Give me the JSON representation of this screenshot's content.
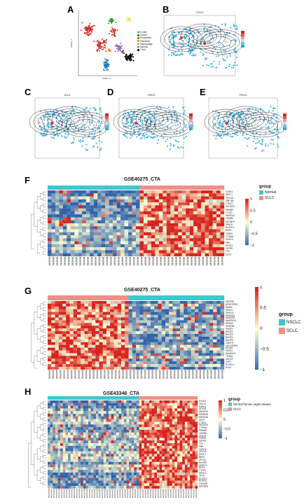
{
  "panel_labels": [
    "A",
    "B",
    "C",
    "D",
    "E",
    "F",
    "G",
    "H"
  ],
  "umap": {
    "xlabel": "UMAP_1",
    "ylabel": "UMAP_2",
    "legend": [
      {
        "name": "B cells",
        "color": "#1f77b4"
      },
      {
        "name": "Cancer",
        "color": "#d62728"
      },
      {
        "name": "Endothelial",
        "color": "#2ca02c"
      },
      {
        "name": "Fibroblast",
        "color": "#ff7f0e"
      },
      {
        "name": "Macrophage",
        "color": "#9467bd"
      },
      {
        "name": "Myeloid",
        "color": "#8c564b"
      },
      {
        "name": "T cell",
        "color": "#000000"
      }
    ]
  },
  "density_titles": {
    "B": "CTAG2",
    "C": "NOL4",
    "D": "SPAG1",
    "E": "SPAG4"
  },
  "heatmaps": {
    "F": {
      "title": "GSE40275_CTA",
      "legend_title": "group",
      "groups": [
        {
          "name": "Normal",
          "color": "#3fc7cf"
        },
        {
          "name": "SCLC",
          "color": "#f08f86"
        }
      ],
      "scale": [
        "1",
        "0.5",
        "0",
        "−0.5",
        "−1"
      ],
      "genes": [
        "CTAG1",
        "DKKL1",
        "TEX101",
        "ZNF165",
        "CTAG2",
        "XAGE1B",
        "PRAME",
        "CTCFL",
        "MAGEA1",
        "LIN28B",
        "IGF2BP1",
        "SPAG4",
        "ELOVL4",
        "ROS1",
        "TDRD1",
        "CT45A1",
        "CASC5",
        "PBK",
        "SYCE1",
        "CEP55",
        "TTK",
        "CDT1"
      ],
      "n_normal": 24,
      "n_sclc": 22
    },
    "G": {
      "title": "GSE40275_CTA",
      "legend_title": "group",
      "groups": [
        {
          "name": "NSCLC",
          "color": "#3fc7cf"
        },
        {
          "name": "SCLC",
          "color": "#f08f86"
        }
      ],
      "scale": [
        "1",
        "0.5",
        "0",
        "−0.5",
        "−1"
      ],
      "genes": [
        "CEP290",
        "MPHOSPH1",
        "EMID1",
        "SPAG1",
        "SPAG17",
        "SMCHD1",
        "MAGEA9",
        "MAGEA10",
        "SPAG4",
        "PAGE2B",
        "PAGE5",
        "BAGE4",
        "BAGE2",
        "BAGE3",
        "BAGE5",
        "CABYR",
        "LOC130576",
        "DDX43",
        "PAGE2",
        "KIAA0100",
        "TSSK6",
        "XAGE2",
        "CSF2",
        "ELOVL4",
        "NOL4"
      ],
      "n_nsclc": 26,
      "n_sclc": 22
    },
    "H": {
      "title": "GSE43346_CTA",
      "legend_title": "group",
      "groups": [
        {
          "name": "Normal human organ tissues",
          "color": "#3fc7cf"
        },
        {
          "name": "SCLC",
          "color": "#f08f86"
        }
      ],
      "scale": [
        "1",
        "0.5",
        "0",
        "−0.5",
        "−1"
      ],
      "genes": [
        "SYCE1",
        "TEX19",
        "PIWIL2",
        "DDX43",
        "MAGEA1",
        "MAGEA3",
        "MAGEA4",
        "SSX2",
        "CTAG2",
        "XAGE1B",
        "CT45A3",
        "PRAME",
        "LIN28B",
        "SPAG4",
        "TDRD1",
        "CEP55",
        "TTK",
        "PBK",
        "CASC5",
        "CDCA1",
        "DKKL1",
        "BRDT",
        "SPO11",
        "ACRBP",
        "MORC1",
        "NOL4",
        "CTCFL",
        "SPAG1",
        "TPTE",
        "ELOVL4",
        "POTEE",
        "CXorf48",
        "IGF2BP3"
      ],
      "n_normal": 36,
      "n_sclc": 23
    }
  }
}
